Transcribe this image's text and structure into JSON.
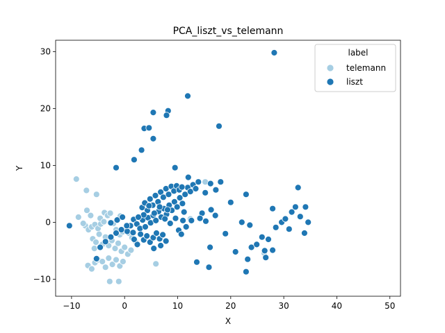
{
  "chart_data": {
    "type": "scatter",
    "title": "PCA_liszt_vs_telemann",
    "xlabel": "X",
    "ylabel": "Y",
    "xlim": [
      -13,
      52
    ],
    "ylim": [
      -13,
      32
    ],
    "xticks": [
      -10,
      0,
      10,
      20,
      30,
      40,
      50
    ],
    "yticks": [
      -10,
      0,
      10,
      20,
      30
    ],
    "tick_labels": {
      "x": [
        "−10",
        "0",
        "10",
        "20",
        "30",
        "40",
        "50"
      ],
      "y": [
        "−10",
        "0",
        "10",
        "20",
        "30"
      ]
    },
    "grid": false,
    "legend": {
      "title": "label",
      "placement": "top-right",
      "entries": [
        "telemann",
        "liszt"
      ]
    },
    "series": [
      {
        "name": "telemann",
        "color": "#a6cee3",
        "points": [
          [
            -9.1,
            7.6
          ],
          [
            -8.7,
            0.9
          ],
          [
            -7.2,
            5.6
          ],
          [
            -7.1,
            2.1
          ],
          [
            -6.4,
            1.2
          ],
          [
            -5.3,
            4.9
          ],
          [
            -7.4,
            -0.6
          ],
          [
            -6.8,
            -1.3
          ],
          [
            -6.2,
            -0.8
          ],
          [
            -5.6,
            -0.4
          ],
          [
            -5.0,
            -1.1
          ],
          [
            -4.5,
            -0.3
          ],
          [
            -3.8,
            1.7
          ],
          [
            -3.2,
            1.2
          ],
          [
            -2.7,
            1.6
          ],
          [
            -2.1,
            -0.2
          ],
          [
            -1.6,
            -1.3
          ],
          [
            -0.9,
            -2.2
          ],
          [
            -0.4,
            -1.7
          ],
          [
            0.3,
            -1.1
          ],
          [
            0.8,
            -1.9
          ],
          [
            1.4,
            -2.7
          ],
          [
            2.0,
            -3.3
          ],
          [
            -6.0,
            -2.9
          ],
          [
            -5.4,
            -3.5
          ],
          [
            -4.8,
            -2.1
          ],
          [
            -4.2,
            -3.9
          ],
          [
            -3.6,
            -2.6
          ],
          [
            -3.0,
            -4.1
          ],
          [
            -2.4,
            -3.2
          ],
          [
            -1.8,
            -4.6
          ],
          [
            -1.2,
            -3.7
          ],
          [
            -0.6,
            -5.1
          ],
          [
            0.0,
            -4.4
          ],
          [
            0.6,
            -5.6
          ],
          [
            1.2,
            -4.9
          ],
          [
            -6.9,
            -7.6
          ],
          [
            -6.2,
            -8.2
          ],
          [
            -5.6,
            -7.1
          ],
          [
            -5.0,
            -6.6
          ],
          [
            -4.2,
            -6.9
          ],
          [
            -3.6,
            -7.9
          ],
          [
            -3.0,
            -6.3
          ],
          [
            -2.3,
            -7.4
          ],
          [
            -1.6,
            -6.6
          ],
          [
            -0.9,
            -7.7
          ],
          [
            -0.3,
            -6.9
          ],
          [
            -2.8,
            -10.4
          ],
          [
            -1.1,
            -10.4
          ],
          [
            5.9,
            -7.3
          ],
          [
            -4.6,
            0.7
          ],
          [
            -3.9,
            0.1
          ],
          [
            -7.8,
            -0.2
          ],
          [
            12.4,
            0.6
          ],
          [
            15.2,
            7.1
          ],
          [
            26.3,
            -5.4
          ],
          [
            -0.8,
            1.1
          ],
          [
            -5.7,
            -4.6
          ]
        ]
      },
      {
        "name": "liszt",
        "color": "#1f77b4",
        "points": [
          [
            28.2,
            29.8
          ],
          [
            11.9,
            22.2
          ],
          [
            8.2,
            19.6
          ],
          [
            5.4,
            19.3
          ],
          [
            7.9,
            18.8
          ],
          [
            17.8,
            16.9
          ],
          [
            3.7,
            16.5
          ],
          [
            4.6,
            16.6
          ],
          [
            5.4,
            14.7
          ],
          [
            3.2,
            12.7
          ],
          [
            1.8,
            11.0
          ],
          [
            -1.6,
            9.6
          ],
          [
            9.5,
            9.6
          ],
          [
            -10.4,
            -0.6
          ],
          [
            -2.6,
            -0.1
          ],
          [
            -1.4,
            0.4
          ],
          [
            -0.4,
            0.9
          ],
          [
            0.5,
            -1.6
          ],
          [
            1.1,
            -0.6
          ],
          [
            1.7,
            0.5
          ],
          [
            2.3,
            -0.3
          ],
          [
            2.9,
            -1.1
          ],
          [
            3.4,
            0.4
          ],
          [
            3.9,
            -0.8
          ],
          [
            4.4,
            0.8
          ],
          [
            4.9,
            -0.1
          ],
          [
            5.4,
            1.2
          ],
          [
            5.9,
            0.3
          ],
          [
            6.4,
            1.9
          ],
          [
            6.9,
            0.9
          ],
          [
            7.4,
            2.4
          ],
          [
            7.9,
            1.4
          ],
          [
            8.4,
            3.0
          ],
          [
            8.9,
            2.1
          ],
          [
            9.4,
            3.6
          ],
          [
            9.9,
            2.7
          ],
          [
            10.4,
            4.3
          ],
          [
            10.9,
            3.3
          ],
          [
            11.4,
            4.9
          ],
          [
            11.9,
            6.1
          ],
          [
            12.4,
            5.4
          ],
          [
            12.9,
            6.6
          ],
          [
            13.4,
            5.9
          ],
          [
            13.9,
            7.1
          ],
          [
            3.3,
            2.6
          ],
          [
            3.8,
            3.4
          ],
          [
            4.3,
            2.1
          ],
          [
            4.8,
            4.1
          ],
          [
            5.3,
            3.0
          ],
          [
            5.8,
            4.7
          ],
          [
            6.3,
            3.6
          ],
          [
            6.8,
            5.3
          ],
          [
            7.3,
            4.4
          ],
          [
            7.8,
            5.9
          ],
          [
            8.3,
            4.9
          ],
          [
            8.8,
            6.3
          ],
          [
            9.3,
            5.5
          ],
          [
            9.8,
            6.4
          ],
          [
            10.3,
            5.7
          ],
          [
            10.8,
            6.2
          ],
          [
            3.0,
            -2.1
          ],
          [
            3.6,
            -3.1
          ],
          [
            4.2,
            -2.4
          ],
          [
            4.8,
            -3.5
          ],
          [
            5.4,
            -2.7
          ],
          [
            6.0,
            -1.9
          ],
          [
            6.6,
            -2.9
          ],
          [
            7.2,
            -2.2
          ],
          [
            7.8,
            -3.3
          ],
          [
            2.4,
            -3.9
          ],
          [
            1.8,
            -3.0
          ],
          [
            5.5,
            -4.6
          ],
          [
            6.8,
            -4.1
          ],
          [
            -5.3,
            -6.4
          ],
          [
            -4.6,
            -4.4
          ],
          [
            -3.6,
            -3.4
          ],
          [
            -2.6,
            -2.6
          ],
          [
            -1.6,
            -1.9
          ],
          [
            -0.6,
            -1.3
          ],
          [
            0.4,
            -0.6
          ],
          [
            1.6,
            -1.8
          ],
          [
            15.2,
            5.2
          ],
          [
            16.2,
            6.8
          ],
          [
            17.2,
            5.7
          ],
          [
            18.1,
            7.1
          ],
          [
            14.6,
            1.6
          ],
          [
            15.3,
            0.2
          ],
          [
            16.3,
            2.2
          ],
          [
            17.1,
            1.2
          ],
          [
            16.1,
            -4.4
          ],
          [
            15.9,
            -7.9
          ],
          [
            13.6,
            -7.0
          ],
          [
            19.0,
            -2.0
          ],
          [
            20.0,
            3.5
          ],
          [
            20.9,
            -5.2
          ],
          [
            22.1,
            0.0
          ],
          [
            22.9,
            4.9
          ],
          [
            23.6,
            -0.5
          ],
          [
            23.9,
            -4.4
          ],
          [
            23.2,
            -6.5
          ],
          [
            22.9,
            -8.7
          ],
          [
            24.9,
            -3.9
          ],
          [
            25.9,
            -2.6
          ],
          [
            26.4,
            -5.0
          ],
          [
            27.1,
            -3.0
          ],
          [
            26.6,
            -6.2
          ],
          [
            27.9,
            -4.9
          ],
          [
            27.9,
            2.4
          ],
          [
            28.5,
            -0.9
          ],
          [
            29.6,
            0.0
          ],
          [
            30.3,
            0.6
          ],
          [
            31.0,
            -1.2
          ],
          [
            31.5,
            1.8
          ],
          [
            32.2,
            2.7
          ],
          [
            32.7,
            6.1
          ],
          [
            33.1,
            1.0
          ],
          [
            33.9,
            -1.9
          ],
          [
            34.1,
            2.7
          ],
          [
            34.6,
            0.0
          ],
          [
            11.0,
            0.3
          ],
          [
            10.2,
            -1.4
          ],
          [
            11.6,
            -0.8
          ],
          [
            12.6,
            0.3
          ],
          [
            10.7,
            -2.1
          ],
          [
            9.6,
            0.7
          ],
          [
            8.6,
            -0.2
          ],
          [
            7.6,
            0.6
          ],
          [
            6.6,
            2.7
          ],
          [
            5.6,
            1.6
          ],
          [
            4.6,
            2.9
          ],
          [
            3.6,
            1.3
          ],
          [
            2.6,
            0.9
          ],
          [
            8.1,
            2.2
          ],
          [
            12.0,
            7.9
          ],
          [
            11.2,
            1.8
          ],
          [
            14.2,
            0.7
          ]
        ]
      }
    ]
  }
}
